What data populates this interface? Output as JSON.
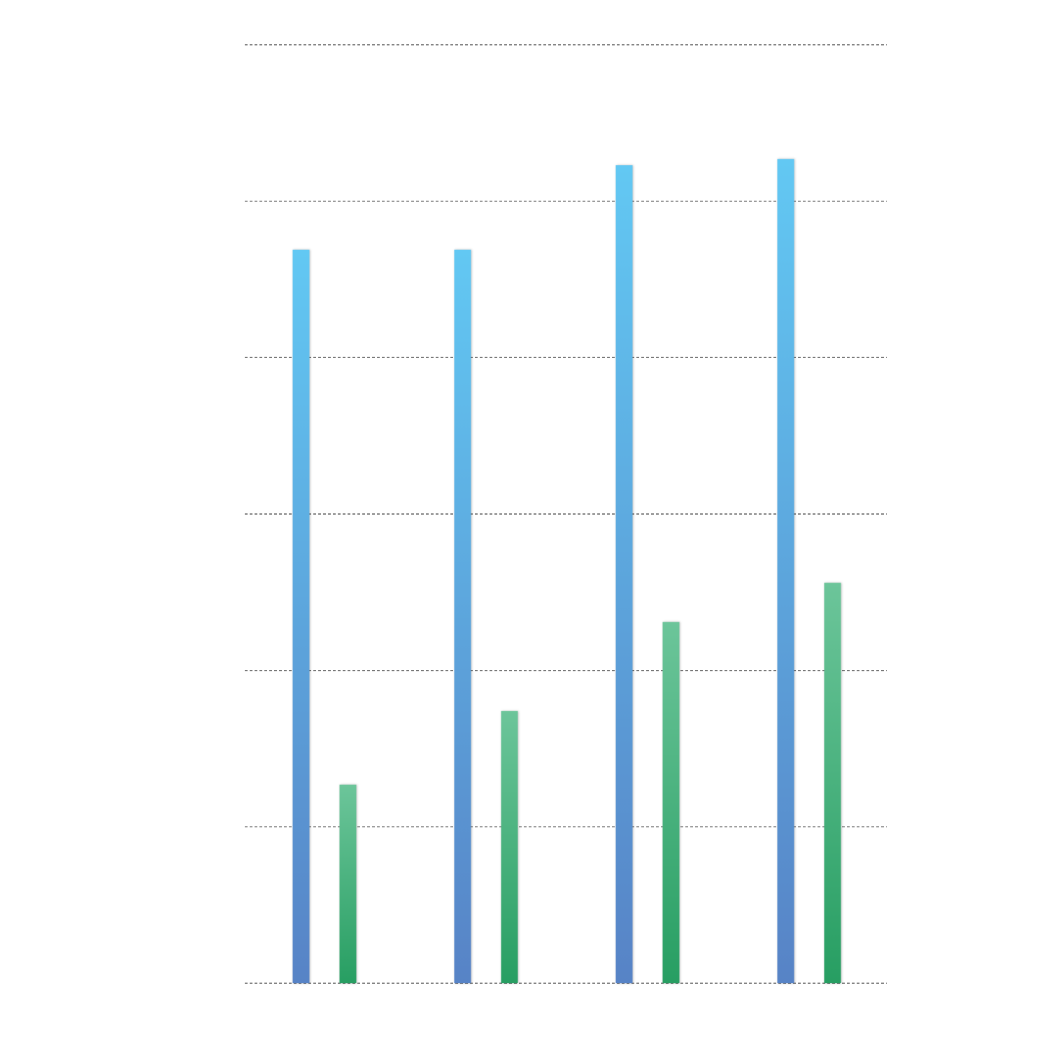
{
  "chart_data": {
    "type": "bar",
    "title": "",
    "xlabel": "",
    "ylabel": "",
    "categories": [
      "",
      "",
      "",
      ""
    ],
    "ylim": [
      0,
      6
    ],
    "grid_values": [
      0,
      1,
      2,
      3,
      4,
      5,
      6
    ],
    "grid": true,
    "legend": "none",
    "series": [
      {
        "values": [
          4.69,
          4.69,
          5.23,
          5.27
        ],
        "color_top": "#62c8f3",
        "color_bottom": "#5783c6"
      },
      {
        "values": [
          1.27,
          1.74,
          2.31,
          2.56
        ],
        "color_top": "#6cc59a",
        "color_bottom": "#279e62"
      }
    ]
  }
}
